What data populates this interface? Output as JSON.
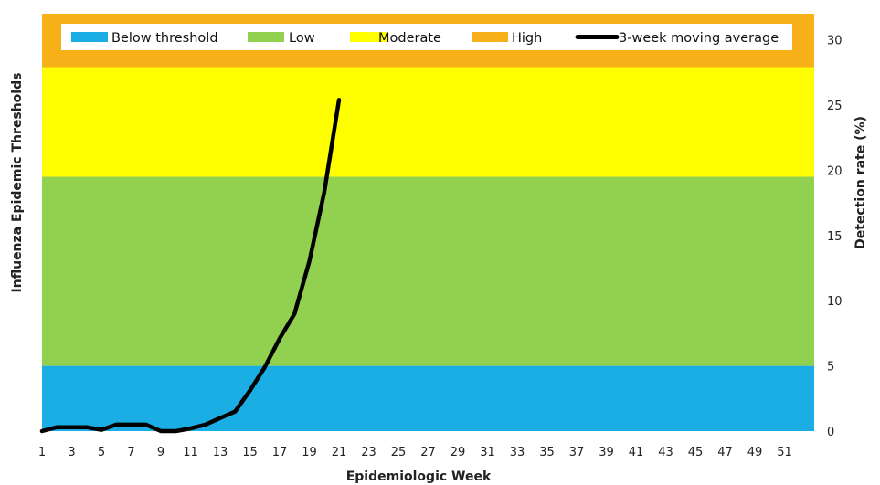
{
  "chart_data": {
    "type": "line",
    "xlabel": "Epidemiologic Week",
    "ylabel_left": "Influenza Epidemic Thresholds",
    "ylabel_right": "Detection rate (%)",
    "x_ticks": [
      1,
      3,
      5,
      7,
      9,
      11,
      13,
      15,
      17,
      19,
      21,
      23,
      25,
      27,
      29,
      31,
      33,
      35,
      37,
      39,
      41,
      43,
      45,
      47,
      49,
      51
    ],
    "xlim": [
      1,
      53
    ],
    "y_ticks": [
      0,
      5,
      10,
      15,
      20,
      25,
      30
    ],
    "ylim": [
      0,
      32
    ],
    "grid": false,
    "legend_position": "top",
    "bands": [
      {
        "name": "Below threshold",
        "from": 0,
        "to": 5,
        "color": "#1aaee5"
      },
      {
        "name": "Low",
        "from": 5,
        "to": 19.5,
        "color": "#92d050"
      },
      {
        "name": "Moderate",
        "from": 19.5,
        "to": 27.9,
        "color": "#ffff00"
      },
      {
        "name": "High",
        "from": 27.9,
        "to": 32,
        "color": "#f7b017"
      }
    ],
    "series": [
      {
        "name": "3-week moving average",
        "color": "#000000",
        "x": [
          1,
          2,
          3,
          4,
          5,
          6,
          7,
          8,
          9,
          10,
          11,
          12,
          13,
          14,
          15,
          16,
          17,
          18,
          19,
          20,
          21
        ],
        "values": [
          0,
          0.3,
          0.3,
          0.3,
          0.1,
          0.5,
          0.5,
          0.5,
          0.0,
          0.0,
          0.2,
          0.5,
          1.0,
          1.5,
          3.1,
          4.9,
          7.1,
          9.0,
          13.0,
          18.3,
          25.4
        ]
      }
    ]
  }
}
